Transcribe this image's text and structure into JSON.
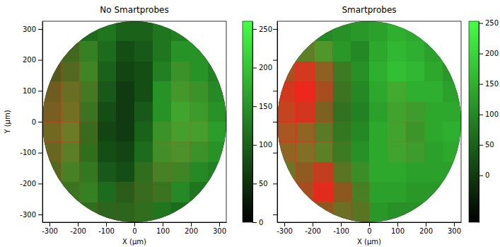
{
  "chart_data": [
    {
      "type": "heatmap",
      "title": "No Smartprobes",
      "x_label": "X (µm)",
      "y_label": "Y (µm)",
      "xlim": [
        -325,
        325
      ],
      "ylim": [
        -325,
        325
      ],
      "xticks": [
        -300,
        -200,
        -100,
        0,
        100,
        200,
        300
      ],
      "yticks": [
        -300,
        -200,
        -100,
        0,
        100,
        200,
        300
      ],
      "x": [
        -292.5,
        -227.5,
        -162.5,
        -97.5,
        -32.5,
        32.5,
        97.5,
        162.5,
        227.5,
        292.5
      ],
      "y": [
        292.5,
        227.5,
        162.5,
        97.5,
        32.5,
        -32.5,
        -97.5,
        -162.5,
        -227.5,
        -292.5
      ],
      "green": [
        [
          null,
          null,
          110,
          120,
          100,
          100,
          120,
          130,
          null,
          null
        ],
        [
          null,
          120,
          140,
          110,
          80,
          90,
          120,
          150,
          150,
          null
        ],
        [
          110,
          130,
          150,
          100,
          70,
          80,
          130,
          160,
          150,
          130
        ],
        [
          130,
          150,
          140,
          90,
          60,
          80,
          150,
          170,
          160,
          140
        ],
        [
          140,
          160,
          130,
          80,
          60,
          90,
          150,
          180,
          170,
          150
        ],
        [
          150,
          170,
          120,
          70,
          60,
          100,
          160,
          180,
          180,
          160
        ],
        [
          140,
          160,
          120,
          80,
          70,
          110,
          160,
          170,
          160,
          150
        ],
        [
          130,
          150,
          130,
          90,
          80,
          120,
          150,
          150,
          140,
          130
        ],
        [
          null,
          130,
          140,
          110,
          100,
          120,
          130,
          140,
          120,
          null
        ],
        [
          null,
          null,
          120,
          110,
          110,
          120,
          120,
          110,
          null,
          null
        ]
      ],
      "red": [
        [
          null,
          null,
          0,
          0,
          0,
          0,
          0,
          0,
          null,
          null
        ],
        [
          null,
          40,
          20,
          0,
          0,
          0,
          0,
          0,
          0,
          null
        ],
        [
          60,
          60,
          30,
          0,
          0,
          0,
          0,
          20,
          0,
          0
        ],
        [
          90,
          80,
          40,
          0,
          0,
          0,
          0,
          30,
          20,
          0
        ],
        [
          100,
          90,
          30,
          0,
          0,
          0,
          0,
          20,
          20,
          0
        ],
        [
          90,
          80,
          30,
          0,
          0,
          0,
          20,
          30,
          30,
          0
        ],
        [
          80,
          60,
          20,
          0,
          0,
          0,
          30,
          40,
          20,
          0
        ],
        [
          60,
          40,
          20,
          0,
          0,
          20,
          40,
          30,
          0,
          0
        ],
        [
          null,
          30,
          20,
          0,
          20,
          30,
          30,
          0,
          0,
          null
        ],
        [
          null,
          null,
          20,
          20,
          20,
          20,
          0,
          0,
          null,
          null
        ]
      ],
      "colorbar": {
        "range": [
          0,
          260
        ],
        "ticks": [
          0,
          50,
          100,
          150,
          200,
          250
        ]
      }
    },
    {
      "type": "heatmap",
      "title": "Smartprobes",
      "x_label": "X (µm)",
      "tick_labels": "x",
      "xlim": [
        -325,
        325
      ],
      "ylim": [
        -325,
        325
      ],
      "xticks": [
        -300,
        -200,
        -100,
        0,
        100,
        200,
        300
      ],
      "yticks": [
        -300,
        -200,
        -100,
        0,
        100,
        200,
        300
      ],
      "x": [
        -292.5,
        -227.5,
        -162.5,
        -97.5,
        -32.5,
        32.5,
        97.5,
        162.5,
        227.5,
        292.5
      ],
      "y": [
        292.5,
        227.5,
        162.5,
        97.5,
        32.5,
        -32.5,
        -97.5,
        -162.5,
        -227.5,
        -292.5
      ],
      "green": [
        [
          null,
          null,
          100,
          110,
          120,
          130,
          150,
          140,
          null,
          null
        ],
        [
          null,
          130,
          150,
          120,
          100,
          140,
          160,
          150,
          130,
          null
        ],
        [
          130,
          150,
          130,
          100,
          110,
          150,
          170,
          160,
          140,
          120
        ],
        [
          140,
          140,
          120,
          90,
          100,
          140,
          160,
          150,
          150,
          130
        ],
        [
          150,
          130,
          110,
          80,
          90,
          130,
          150,
          140,
          140,
          140
        ],
        [
          150,
          140,
          120,
          90,
          100,
          140,
          150,
          130,
          140,
          150
        ],
        [
          140,
          140,
          130,
          100,
          110,
          140,
          150,
          140,
          130,
          140
        ],
        [
          130,
          120,
          120,
          110,
          120,
          140,
          140,
          130,
          130,
          130
        ],
        [
          null,
          120,
          120,
          110,
          110,
          130,
          130,
          120,
          120,
          null
        ],
        [
          null,
          null,
          110,
          120,
          110,
          120,
          110,
          110,
          null,
          null
        ]
      ],
      "red": [
        [
          null,
          null,
          0,
          0,
          0,
          0,
          0,
          0,
          null,
          null
        ],
        [
          null,
          60,
          40,
          0,
          0,
          0,
          0,
          0,
          0,
          null
        ],
        [
          150,
          200,
          120,
          30,
          0,
          0,
          0,
          0,
          0,
          0
        ],
        [
          200,
          230,
          150,
          30,
          0,
          0,
          20,
          0,
          0,
          0
        ],
        [
          180,
          200,
          100,
          20,
          0,
          0,
          20,
          20,
          0,
          0
        ],
        [
          150,
          120,
          60,
          20,
          0,
          0,
          20,
          20,
          0,
          0
        ],
        [
          120,
          100,
          60,
          30,
          0,
          0,
          20,
          20,
          0,
          0
        ],
        [
          80,
          120,
          180,
          60,
          20,
          0,
          0,
          0,
          0,
          0
        ],
        [
          null,
          150,
          220,
          120,
          40,
          0,
          0,
          0,
          0,
          null
        ],
        [
          null,
          null,
          120,
          80,
          60,
          0,
          0,
          0,
          null,
          null
        ]
      ],
      "colorbar": {
        "range": [
          -77,
          253
        ],
        "ticks": [
          0,
          50,
          100,
          150,
          200,
          250
        ]
      }
    }
  ]
}
